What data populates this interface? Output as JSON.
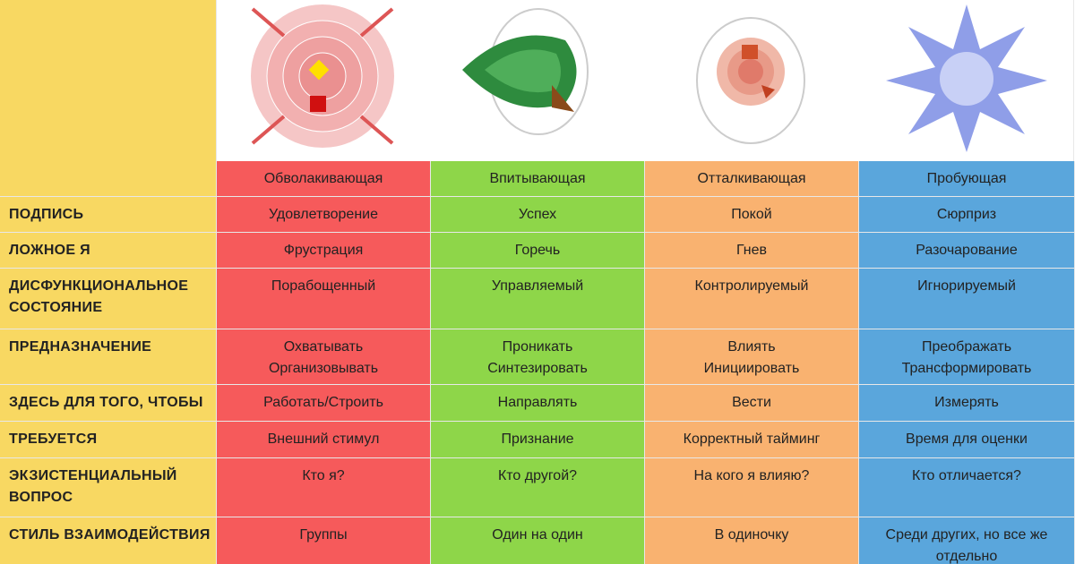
{
  "header": {
    "types": [
      "Обволакивающая",
      "Впитывающая",
      "Отталкивающая",
      "Пробующая"
    ]
  },
  "rows": [
    {
      "label": "ПОДПИСЬ",
      "cells": [
        "Удовлетворение",
        "Успех",
        "Покой",
        "Сюрприз"
      ]
    },
    {
      "label": "ЛОЖНОЕ Я",
      "cells": [
        "Фрустрация",
        "Горечь",
        "Гнев",
        "Разочарование"
      ]
    },
    {
      "label": "ДИСФУНКЦИОНАЛЬНОЕ\nСОСТОЯНИЕ",
      "cells": [
        "Порабощенный",
        "Управляемый",
        "Контролируемый",
        "Игнорируемый"
      ]
    },
    {
      "label": "ПРЕДНАЗНАЧЕНИЕ",
      "cells": [
        "Охватывать\nОрганизовывать",
        "Проникать\nСинтезировать",
        "Влиять\nИнициировать",
        "Преображать\nТрансформировать"
      ]
    },
    {
      "label": "ЗДЕСЬ ДЛЯ ТОГО, ЧТОБЫ",
      "cells": [
        "Работать/Строить",
        "Направлять",
        "Вести",
        "Измерять"
      ]
    },
    {
      "label": "ТРЕБУЕТСЯ",
      "cells": [
        "Внешний стимул",
        "Признание",
        "Корректный тайминг",
        "Время для оценки"
      ]
    },
    {
      "label": "ЭКЗИСТЕНЦИАЛЬНЫЙ\nВОПРОС",
      "cells": [
        "Кто я?",
        "Кто другой?",
        "На кого я влияю?",
        "Кто отличается?"
      ]
    },
    {
      "label": "СТИЛЬ ВЗАИМОДЕЙСТВИЯ",
      "cells": [
        "Группы",
        "Один на один",
        "В одиночку",
        "Среди других, но все же\nотдельно"
      ]
    }
  ]
}
